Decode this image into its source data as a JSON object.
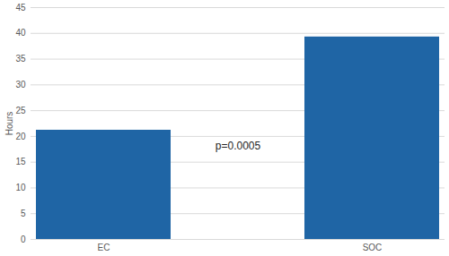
{
  "chart_data": {
    "type": "bar",
    "y_label": "Hours",
    "categories": [
      "EC",
      "SOC"
    ],
    "values": [
      21.2,
      39.3
    ],
    "color": "#1f65a5",
    "ylim": [
      0,
      45
    ],
    "yticks": [
      0,
      5,
      10,
      15,
      20,
      25,
      30,
      35,
      40,
      45
    ],
    "grid": true,
    "annotations": [
      "p=0.0005"
    ]
  }
}
